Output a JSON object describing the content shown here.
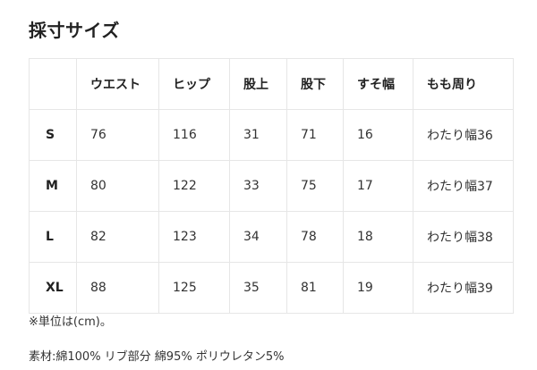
{
  "title": "採寸サイズ",
  "table": {
    "headers": [
      "",
      "ウエスト",
      "ヒップ",
      "股上",
      "股下",
      "すそ幅",
      "もも周り"
    ],
    "rows": [
      [
        "S",
        "76",
        "116",
        "31",
        "71",
        "16",
        "わたり幅36"
      ],
      [
        "M",
        "80",
        "122",
        "33",
        "75",
        "17",
        "わたり幅37"
      ],
      [
        "L",
        "82",
        "123",
        "34",
        "78",
        "18",
        "わたり幅38"
      ],
      [
        "XL",
        "88",
        "125",
        "35",
        "81",
        "19",
        "わたり幅39"
      ]
    ]
  },
  "note": "※単位は(cm)。",
  "material": "素材:綿100% リブ部分 綿95% ポリウレタン5%"
}
